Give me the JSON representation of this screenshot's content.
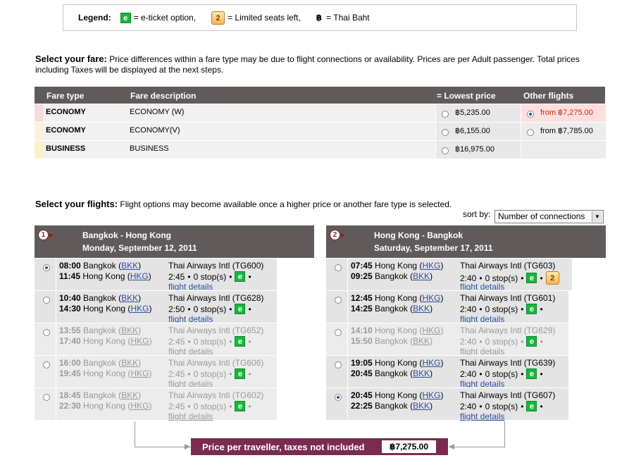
{
  "legend": {
    "label": "Legend:",
    "eticket_icon": "e",
    "eticket_text": "= e-ticket option,",
    "limited_icon": "2",
    "limited_text": "= Limited seats left,",
    "baht_symbol": "฿",
    "baht_text": "= Thai Baht"
  },
  "fare_section": {
    "heading": "Select your fare:",
    "text": "Price differences within a fare type may be due to flight connections or availability. Prices are per Adult passenger. Total prices including Taxes will be displayed at the next steps.",
    "columns": [
      "Fare type",
      "Fare description",
      "= Lowest price",
      "Other flights"
    ],
    "rows": [
      {
        "type": "ECONOMY",
        "desc": "ECONOMY (W)",
        "lowest": "฿5,235.00",
        "other": "from ฿7,275.00",
        "mark": "#f6dcdc"
      },
      {
        "type": "ECONOMY",
        "desc": "ECONOMY(V)",
        "lowest": "฿6,155.00",
        "other": "from ฿7,785.00",
        "mark": "#faf2dc"
      },
      {
        "type": "BUSINESS",
        "desc": "BUSINESS",
        "lowest": "฿16,975.00",
        "other": "",
        "mark": "#fbf3c8"
      }
    ]
  },
  "flights_section": {
    "heading": "Select your flights:",
    "text": "Flight options may become available once a higher price or another fare type is selected.",
    "sort_label": "sort by:",
    "sort_value": "Number of connections"
  },
  "legs": [
    {
      "num": "1",
      "route": "Bangkok - Hong Kong",
      "date": "Monday, September 12, 2011",
      "flights": [
        {
          "dep_time": "08:00",
          "dep_city": "Bangkok",
          "dep_code": "BKK",
          "arr_time": "11:45",
          "arr_city": "Hong Kong",
          "arr_code": "HKG",
          "airline": "Thai Airways Intl (TG600)",
          "duration": "2:45",
          "stops": "0 stop(s)",
          "details": "flight details",
          "selected": true,
          "disabled": false,
          "limited": false
        },
        {
          "dep_time": "10:40",
          "dep_city": "Bangkok",
          "dep_code": "BKK",
          "arr_time": "14:30",
          "arr_city": "Hong Kong",
          "arr_code": "HKG",
          "airline": "Thai Airways Intl (TG628)",
          "duration": "2:50",
          "stops": "0 stop(s)",
          "details": "flight details",
          "selected": false,
          "disabled": false,
          "limited": false
        },
        {
          "dep_time": "13:55",
          "dep_city": "Bangkok",
          "dep_code": "BKK",
          "arr_time": "17:40",
          "arr_city": "Hong Kong",
          "arr_code": "HKG",
          "airline": "Thai Airways Intl (TG652)",
          "duration": "2:45",
          "stops": "0 stop(s)",
          "details": "flight details",
          "selected": false,
          "disabled": true,
          "limited": false
        },
        {
          "dep_time": "16:00",
          "dep_city": "Bangkok",
          "dep_code": "BKK",
          "arr_time": "19:45",
          "arr_city": "Hong Kong",
          "arr_code": "HKG",
          "airline": "Thai Airways Intl (TG606)",
          "duration": "2:45",
          "stops": "0 stop(s)",
          "details": "flight details",
          "selected": false,
          "disabled": true,
          "limited": false
        },
        {
          "dep_time": "18:45",
          "dep_city": "Bangkok",
          "dep_code": "BKK",
          "arr_time": "22:30",
          "arr_city": "Hong Kong",
          "arr_code": "HKG",
          "airline": "Thai Airways Intl (TG602)",
          "duration": "2:45",
          "stops": "0 stop(s)",
          "details": "flight details",
          "selected": false,
          "disabled": true,
          "limited": false
        }
      ]
    },
    {
      "num": "2",
      "route": "Hong Kong - Bangkok",
      "date": "Saturday, September 17, 2011",
      "flights": [
        {
          "dep_time": "07:45",
          "dep_city": "Hong Kong",
          "dep_code": "HKG",
          "arr_time": "09:25",
          "arr_city": "Bangkok",
          "arr_code": "BKK",
          "airline": "Thai Airways Intl (TG603)",
          "duration": "2:40",
          "stops": "0 stop(s)",
          "details": "flight details",
          "selected": false,
          "disabled": false,
          "limited": true
        },
        {
          "dep_time": "12:45",
          "dep_city": "Hong Kong",
          "dep_code": "HKG",
          "arr_time": "14:25",
          "arr_city": "Bangkok",
          "arr_code": "BKK",
          "airline": "Thai Airways Intl (TG601)",
          "duration": "2:40",
          "stops": "0 stop(s)",
          "details": "flight details",
          "selected": false,
          "disabled": false,
          "limited": false
        },
        {
          "dep_time": "14:10",
          "dep_city": "Hong Kong",
          "dep_code": "HKG",
          "arr_time": "15:50",
          "arr_city": "Bangkok",
          "arr_code": "BKK",
          "airline": "Thai Airways Intl (TG629)",
          "duration": "2:40",
          "stops": "0 stop(s)",
          "details": "flight details",
          "selected": false,
          "disabled": true,
          "limited": false
        },
        {
          "dep_time": "19:05",
          "dep_city": "Hong Kong",
          "dep_code": "HKG",
          "arr_time": "20:45",
          "arr_city": "Bangkok",
          "arr_code": "BKK",
          "airline": "Thai Airways Intl (TG639)",
          "duration": "2:40",
          "stops": "0 stop(s)",
          "details": "flight details",
          "selected": false,
          "disabled": false,
          "limited": false
        },
        {
          "dep_time": "20:45",
          "dep_city": "Hong Kong",
          "dep_code": "HKG",
          "arr_time": "22:25",
          "arr_city": "Bangkok",
          "arr_code": "BKK",
          "airline": "Thai Airways Intl (TG607)",
          "duration": "2:40",
          "stops": "0 stop(s)",
          "details": "flight details",
          "selected": true,
          "disabled": false,
          "limited": false
        }
      ]
    }
  ],
  "total": {
    "label": "Price per traveller, taxes not included",
    "value": "฿7,275.00"
  }
}
